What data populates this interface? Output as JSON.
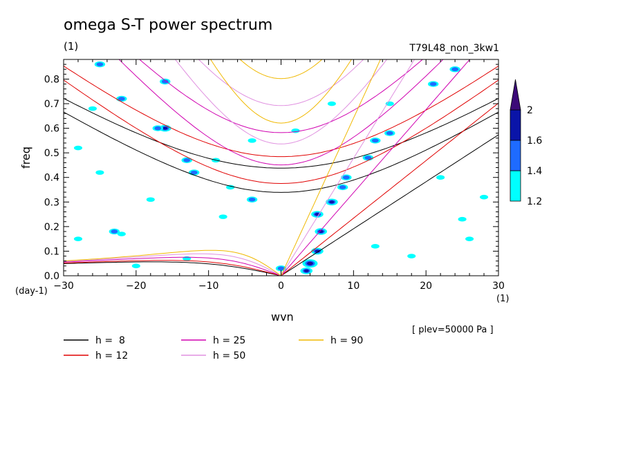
{
  "figure": {
    "title": "omega S-T power spectrum",
    "subtitle": "(1)",
    "run_name": "T79L48_non_3kw1",
    "level_note": "[ plev=50000 Pa ]"
  },
  "chart_data": {
    "type": "heatmap",
    "title": "omega S-T power spectrum",
    "xlabel": "wvn",
    "xunit": "(1)",
    "ylabel": "freq",
    "yunit": "(day-1)",
    "xlim": [
      -30,
      30
    ],
    "ylim": [
      0,
      0.88
    ],
    "xticks": [
      -30,
      -20,
      -10,
      0,
      10,
      20,
      30
    ],
    "yticks": [
      0.0,
      0.1,
      0.2,
      0.3,
      0.4,
      0.5,
      0.6,
      0.7,
      0.8
    ],
    "colorbar": {
      "levels": [
        1.2,
        1.4,
        1.6,
        2
      ],
      "colors": [
        "#00ffff",
        "#1e6bff",
        "#0a14a8",
        "#3c0a78"
      ]
    },
    "dispersion_curves": [
      {
        "name": "h =  8",
        "h": 8,
        "color": "#000000"
      },
      {
        "name": "h = 12",
        "h": 12,
        "color": "#e00000"
      },
      {
        "name": "h = 25",
        "h": 25,
        "color": "#d000b0"
      },
      {
        "name": "h = 50",
        "h": 50,
        "color": "#e090e0"
      },
      {
        "name": "h = 90",
        "h": 90,
        "color": "#f0b800"
      }
    ],
    "spectral_features": [
      {
        "wvn": 4,
        "freq": 0.05,
        "level": 2
      },
      {
        "wvn": 3.5,
        "freq": 0.02,
        "level": 1.6
      },
      {
        "wvn": 5,
        "freq": 0.1,
        "level": 1.6
      },
      {
        "wvn": 5.5,
        "freq": 0.18,
        "level": 1.6
      },
      {
        "wvn": 5,
        "freq": 0.25,
        "level": 1.6
      },
      {
        "wvn": 7,
        "freq": 0.3,
        "level": 1.6
      },
      {
        "wvn": 8.5,
        "freq": 0.36,
        "level": 1.4
      },
      {
        "wvn": 9,
        "freq": 0.4,
        "level": 1.4
      },
      {
        "wvn": 12,
        "freq": 0.48,
        "level": 1.4
      },
      {
        "wvn": 13,
        "freq": 0.55,
        "level": 1.4
      },
      {
        "wvn": 15,
        "freq": 0.58,
        "level": 1.4
      },
      {
        "wvn": 0,
        "freq": 0.03,
        "level": 1.4
      },
      {
        "wvn": -16,
        "freq": 0.6,
        "level": 1.6
      },
      {
        "wvn": -17,
        "freq": 0.6,
        "level": 1.4
      },
      {
        "wvn": -23,
        "freq": 0.18,
        "level": 1.4
      },
      {
        "wvn": -22,
        "freq": 0.17,
        "level": 1.2
      },
      {
        "wvn": -13,
        "freq": 0.47,
        "level": 1.4
      },
      {
        "wvn": -16,
        "freq": 0.79,
        "level": 1.4
      },
      {
        "wvn": -22,
        "freq": 0.72,
        "level": 1.4
      },
      {
        "wvn": -26,
        "freq": 0.68,
        "level": 1.2
      },
      {
        "wvn": -25,
        "freq": 0.86,
        "level": 1.4
      },
      {
        "wvn": -12,
        "freq": 0.42,
        "level": 1.4
      },
      {
        "wvn": -4,
        "freq": 0.31,
        "level": 1.4
      },
      {
        "wvn": -4,
        "freq": 0.55,
        "level": 1.2
      },
      {
        "wvn": -9,
        "freq": 0.47,
        "level": 1.2
      },
      {
        "wvn": 2,
        "freq": 0.59,
        "level": 1.2
      },
      {
        "wvn": 24,
        "freq": 0.84,
        "level": 1.4
      },
      {
        "wvn": 21,
        "freq": 0.78,
        "level": 1.4
      },
      {
        "wvn": 26,
        "freq": 0.15,
        "level": 1.2
      },
      {
        "wvn": 25,
        "freq": 0.23,
        "level": 1.2
      },
      {
        "wvn": 28,
        "freq": 0.32,
        "level": 1.2
      },
      {
        "wvn": 22,
        "freq": 0.4,
        "level": 1.2
      },
      {
        "wvn": -28,
        "freq": 0.15,
        "level": 1.2
      },
      {
        "wvn": -25,
        "freq": 0.42,
        "level": 1.2
      },
      {
        "wvn": -8,
        "freq": 0.24,
        "level": 1.2
      },
      {
        "wvn": -18,
        "freq": 0.31,
        "level": 1.2
      },
      {
        "wvn": 18,
        "freq": 0.08,
        "level": 1.2
      },
      {
        "wvn": -20,
        "freq": 0.04,
        "level": 1.2
      },
      {
        "wvn": -13,
        "freq": 0.07,
        "level": 1.2
      },
      {
        "wvn": 13,
        "freq": 0.12,
        "level": 1.2
      },
      {
        "wvn": 15,
        "freq": 0.7,
        "level": 1.2
      },
      {
        "wvn": -7,
        "freq": 0.36,
        "level": 1.2
      },
      {
        "wvn": 7,
        "freq": 0.7,
        "level": 1.2
      },
      {
        "wvn": -28,
        "freq": 0.52,
        "level": 1.2
      }
    ]
  }
}
